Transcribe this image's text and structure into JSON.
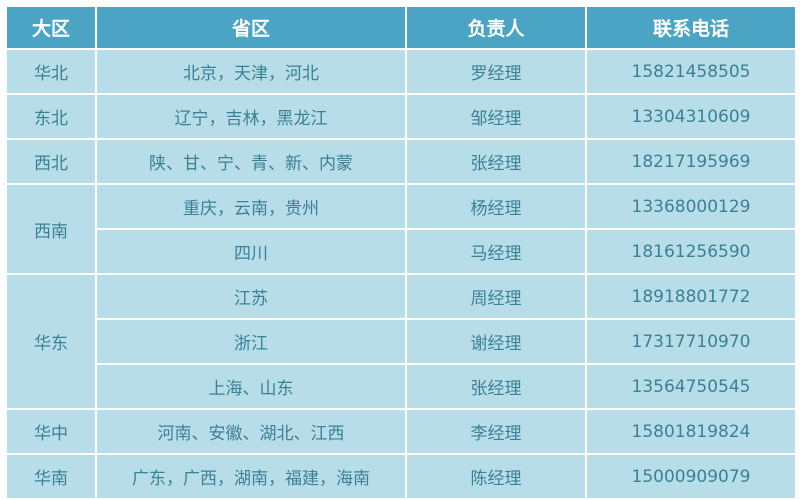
{
  "headers": [
    "大区",
    "省区",
    "负责人",
    "联系电话"
  ],
  "rows": [
    {
      "region": "华北",
      "province": "北京，天津，河北",
      "manager": "罗经理",
      "phone": "15821458505"
    },
    {
      "region": "东北",
      "province": "辽宁，吉林，黑龙江",
      "manager": "邹经理",
      "phone": "13304310609"
    },
    {
      "region": "西北",
      "province": "陕、甘、宁、青、新、内蒙",
      "manager": "张经理",
      "phone": "18217195969"
    },
    {
      "region": "西南",
      "province": "重庆，云南，贵州",
      "manager": "杨经理",
      "phone": "13368000129"
    },
    {
      "region": "",
      "province": "四川",
      "manager": "马经理",
      "phone": "18161256590"
    },
    {
      "region": "华东",
      "province": "江苏",
      "manager": "周经理",
      "phone": "18918801772"
    },
    {
      "region": "",
      "province": "浙江",
      "manager": "谢经理",
      "phone": "17317710970"
    },
    {
      "region": "",
      "province": "上海、山东",
      "manager": "张经理",
      "phone": "13564750545"
    },
    {
      "region": "华中",
      "province": "河南、安徽、湖北、江西",
      "manager": "李经理",
      "phone": "15801819824"
    },
    {
      "region": "华南",
      "province": "广东，广西，湖南，福建，海南",
      "manager": "陈经理",
      "phone": "15000909079"
    }
  ],
  "colors": {
    "header": "#4ba4c4",
    "body": "#b6dde8",
    "text": "#3b8196"
  }
}
